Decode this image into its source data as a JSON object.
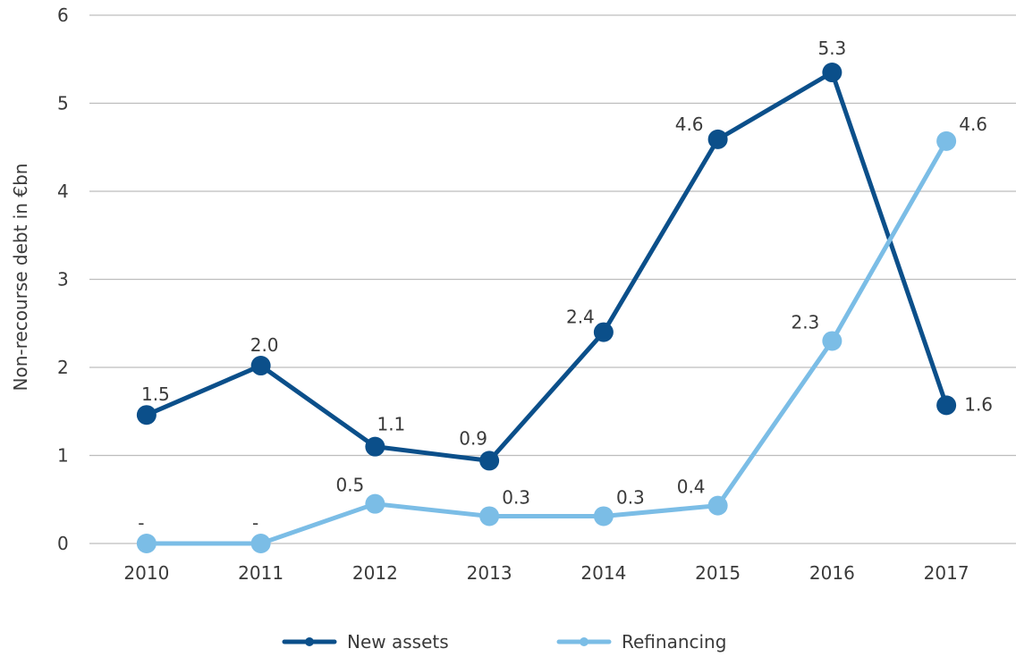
{
  "chart_data": {
    "type": "line",
    "title": "",
    "xlabel": "",
    "ylabel": "Non-recourse debt in €bn",
    "categories": [
      "2010",
      "2011",
      "2012",
      "2013",
      "2014",
      "2015",
      "2016",
      "2017"
    ],
    "ylim": [
      0,
      6
    ],
    "yticks": [
      "0",
      "1",
      "2",
      "3",
      "4",
      "5",
      "6"
    ],
    "grid": true,
    "legend_position": "bottom-center",
    "series": [
      {
        "name": "New assets",
        "color": "#0b4f8a",
        "values": [
          1.46,
          2.02,
          1.1,
          0.94,
          2.4,
          4.59,
          5.35,
          1.57
        ],
        "labels": [
          "1.5",
          "2.0",
          "1.1",
          "0.9",
          "2.4",
          "4.6",
          "5.3",
          "1.6"
        ]
      },
      {
        "name": "Refinancing",
        "color": "#7bbde6",
        "values": [
          0,
          0,
          0.45,
          0.31,
          0.31,
          0.43,
          2.3,
          4.57
        ],
        "labels": [
          "-",
          "-",
          "0.5",
          "0.3",
          "0.3",
          "0.4",
          "2.3",
          "4.6"
        ]
      }
    ]
  }
}
